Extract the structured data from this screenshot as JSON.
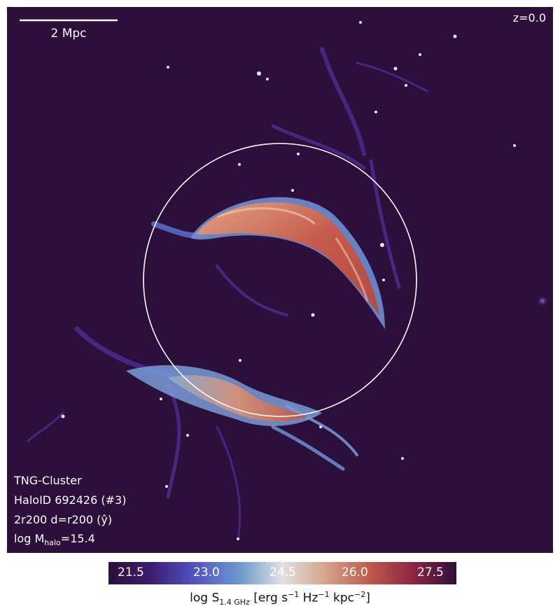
{
  "image": {
    "scale_bar_label": "2 Mpc",
    "redshift_label": "z=0.0",
    "info": {
      "simulation": "TNG-Cluster",
      "halo": "HaloID 692426 (#3)",
      "projection_prefix": "2r200 d=r200 (",
      "projection_axis": "ŷ",
      "projection_suffix": ")",
      "mass_prefix": "log M",
      "mass_sub": "halo",
      "mass_suffix": "=15.4"
    },
    "colors": {
      "background": "#2c0f3a",
      "circle": "#ffffff"
    }
  },
  "colorbar": {
    "ticks": [
      "21.5",
      "23.0",
      "24.5",
      "26.0",
      "27.5"
    ],
    "label_prefix": "log S",
    "label_sub": "1.4 GHz",
    "label_mid1": " [erg s",
    "label_sup1": "−1",
    "label_mid2": " Hz",
    "label_sup2": "−1",
    "label_mid3": " kpc",
    "label_sup3": "−2",
    "label_end": "]"
  }
}
